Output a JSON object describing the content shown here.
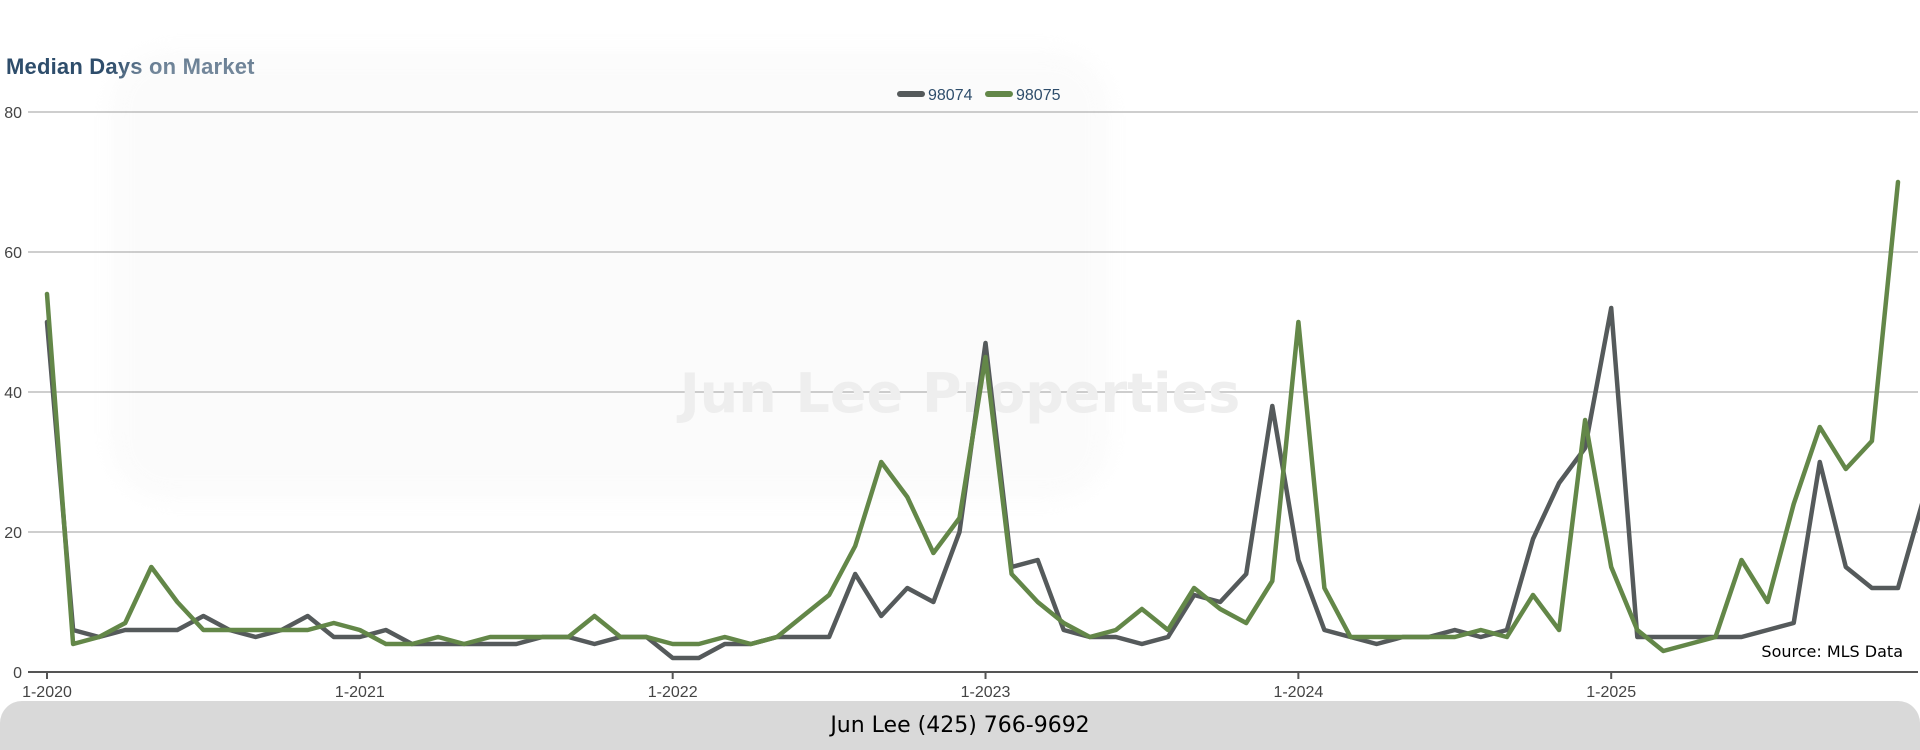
{
  "chart_data": {
    "type": "line",
    "title": "Median Days on Market",
    "xlabel": "",
    "ylabel": "",
    "ylim": [
      0,
      80
    ],
    "yticks": [
      "0",
      "20",
      "40",
      "60",
      "80"
    ],
    "grid": true,
    "legend_position": "top-center",
    "x_start": "1-2020",
    "x_tick_labels": [
      "1-2020",
      "1-2021",
      "1-2022",
      "1-2023",
      "1-2024",
      "1-2025"
    ],
    "months_per_year": 12,
    "series": [
      {
        "name": "98074",
        "color": "#555a5b",
        "values": [
          50,
          6,
          5,
          6,
          6,
          6,
          8,
          6,
          5,
          6,
          8,
          5,
          5,
          6,
          4,
          4,
          4,
          4,
          4,
          5,
          5,
          4,
          5,
          5,
          2,
          2,
          4,
          4,
          5,
          5,
          5,
          14,
          8,
          12,
          10,
          20,
          47,
          15,
          16,
          6,
          5,
          5,
          4,
          5,
          11,
          10,
          14,
          38,
          16,
          6,
          5,
          4,
          5,
          5,
          6,
          5,
          6,
          19,
          27,
          32,
          52,
          5,
          5,
          5,
          5,
          5,
          6,
          7,
          30,
          15,
          12,
          12,
          25
        ]
      },
      {
        "name": "98075",
        "color": "#638748",
        "values": [
          54,
          4,
          5,
          7,
          15,
          10,
          6,
          6,
          6,
          6,
          6,
          7,
          6,
          4,
          4,
          5,
          4,
          5,
          5,
          5,
          5,
          8,
          5,
          5,
          4,
          4,
          5,
          4,
          5,
          8,
          11,
          18,
          30,
          25,
          17,
          22,
          45,
          14,
          10,
          7,
          5,
          6,
          9,
          6,
          12,
          9,
          7,
          13,
          50,
          12,
          5,
          5,
          5,
          5,
          5,
          6,
          5,
          11,
          6,
          36,
          15,
          6,
          3,
          4,
          5,
          16,
          10,
          24,
          35,
          29,
          33,
          70
        ]
      }
    ]
  },
  "watermark": "Jun Lee Properties",
  "source": "Source: MLS Data",
  "footer": "Jun Lee (425) 766-9692"
}
